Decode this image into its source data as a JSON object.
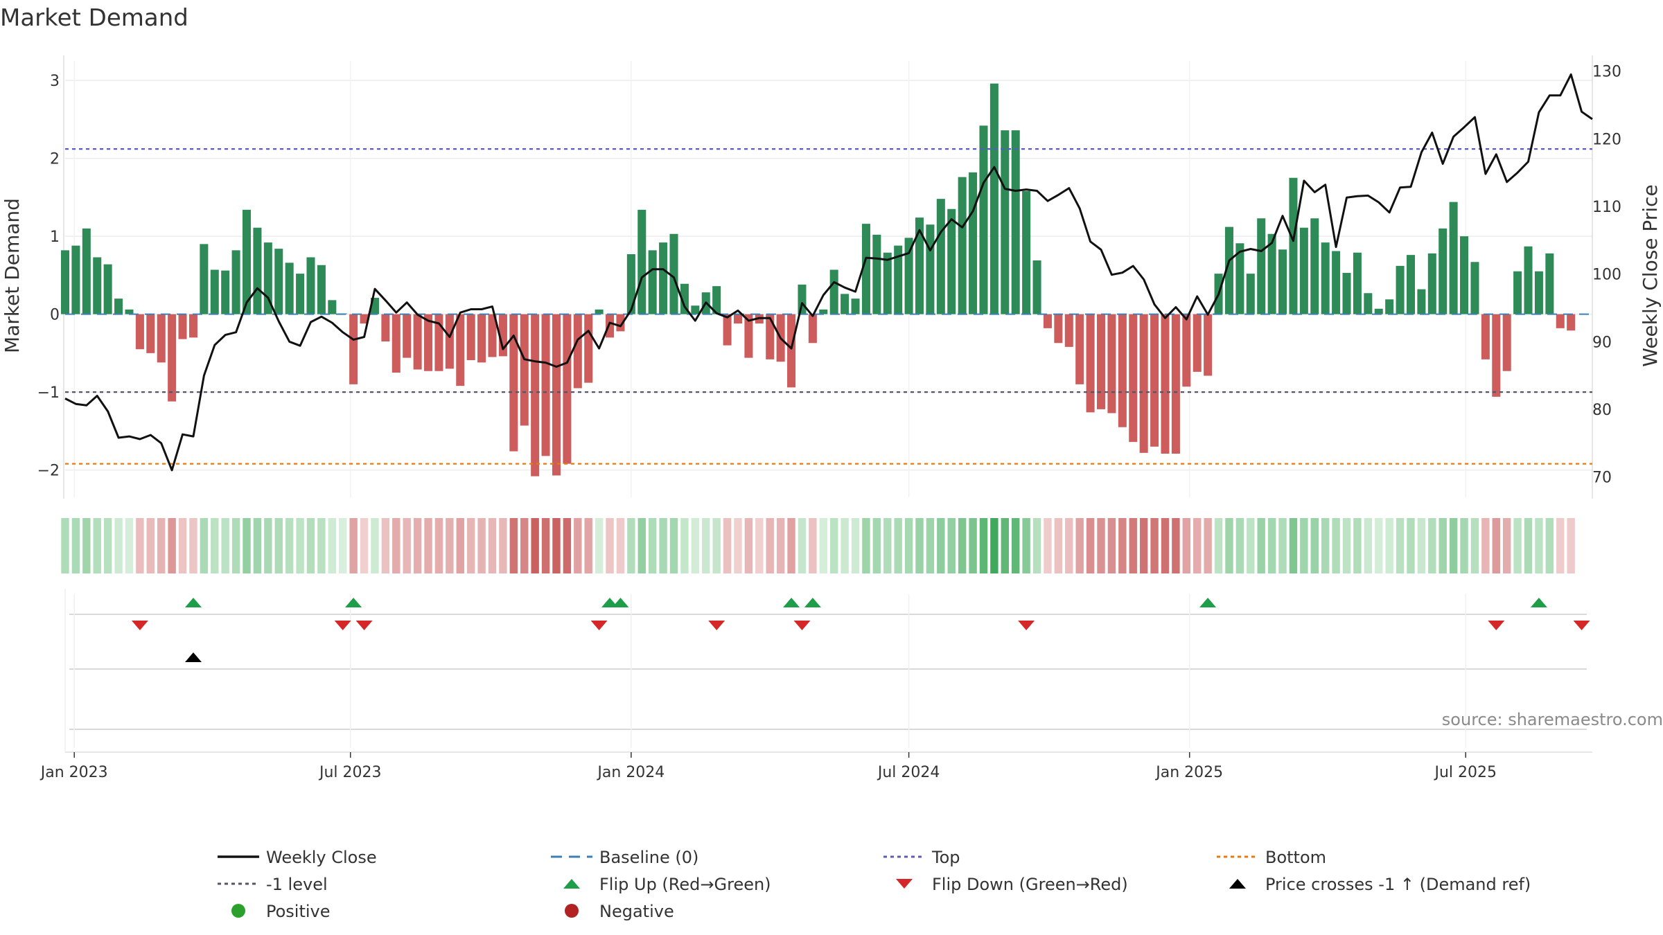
{
  "chart_data": {
    "type": "bar",
    "title": "Market Demand",
    "ylabel": "Market Demand",
    "y2label": "Weekly Close Price",
    "ylim": [
      -2.35,
      3.25
    ],
    "y2lim": [
      67,
      131.5
    ],
    "yticks": [
      3,
      2,
      1,
      0,
      -1,
      -2
    ],
    "ytick_labels": [
      "3",
      "2",
      "1",
      "0",
      "−1",
      "−2"
    ],
    "y2ticks": [
      130,
      120,
      110,
      100,
      90,
      80,
      70
    ],
    "y2tick_labels": [
      "130",
      "120",
      "110",
      "100",
      "90",
      "80",
      "70"
    ],
    "x_start": "2022-12-26",
    "x_end": "2025-09-22",
    "xticks": [
      {
        "date": "2023-01-01",
        "label": "Jan 2023"
      },
      {
        "date": "2023-07-01",
        "label": "Jul 2023"
      },
      {
        "date": "2024-01-01",
        "label": "Jan 2024"
      },
      {
        "date": "2024-07-01",
        "label": "Jul 2024"
      },
      {
        "date": "2025-01-01",
        "label": "Jan 2025"
      },
      {
        "date": "2025-07-01",
        "label": "Jul 2025"
      }
    ],
    "top_level": 2.12,
    "minus1_level": -1.0,
    "bottom_level": -1.92,
    "bars_start": "2022-12-26",
    "bar_step_days": 7,
    "demand": [
      0.82,
      0.88,
      1.1,
      0.73,
      0.64,
      0.2,
      0.06,
      -0.45,
      -0.5,
      -0.62,
      -1.12,
      -0.32,
      -0.3,
      0.9,
      0.57,
      0.56,
      0.82,
      1.34,
      1.11,
      0.92,
      0.84,
      0.66,
      0.52,
      0.73,
      0.63,
      0.18,
      0.01,
      -0.9,
      -0.12,
      0.21,
      -0.35,
      -0.75,
      -0.56,
      -0.71,
      -0.73,
      -0.73,
      -0.7,
      -0.92,
      -0.59,
      -0.62,
      -0.55,
      -0.54,
      -1.76,
      -1.43,
      -2.08,
      -1.82,
      -2.07,
      -1.92,
      -0.95,
      -0.88,
      0.06,
      -0.3,
      -0.22,
      0.77,
      1.34,
      0.82,
      0.92,
      1.03,
      0.39,
      0.11,
      0.28,
      0.36,
      -0.4,
      -0.12,
      -0.56,
      -0.12,
      -0.58,
      -0.61,
      -0.94,
      0.38,
      -0.37,
      0.06,
      0.57,
      0.26,
      0.2,
      1.16,
      1.02,
      0.79,
      0.88,
      0.98,
      1.24,
      1.15,
      1.48,
      1.35,
      1.76,
      1.82,
      2.42,
      2.96,
      2.36,
      2.36,
      1.58,
      0.69,
      -0.18,
      -0.37,
      -0.42,
      -0.9,
      -1.26,
      -1.22,
      -1.27,
      -1.45,
      -1.64,
      -1.78,
      -1.7,
      -1.79,
      -1.79,
      -0.93,
      -0.74,
      -0.79,
      0.52,
      1.12,
      0.91,
      0.52,
      1.23,
      1.03,
      0.83,
      1.75,
      1.11,
      1.23,
      0.92,
      0.81,
      0.53,
      0.79,
      0.27,
      0.07,
      0.19,
      0.62,
      0.76,
      0.32,
      0.78,
      1.1,
      1.44,
      1.0,
      0.67,
      -0.58,
      -1.06,
      -0.73,
      0.55,
      0.87,
      0.55,
      0.78,
      -0.18,
      -0.21
    ],
    "close": [
      81.6,
      80.8,
      80.6,
      82.0,
      79.7,
      75.8,
      76.0,
      75.6,
      76.2,
      75.0,
      71.0,
      76.3,
      76.0,
      85.0,
      89.5,
      91.0,
      91.4,
      95.8,
      97.9,
      96.5,
      93.0,
      90.0,
      89.4,
      92.9,
      93.7,
      92.8,
      91.4,
      90.3,
      90.7,
      97.8,
      96.1,
      94.3,
      95.8,
      94.0,
      93.1,
      92.7,
      90.7,
      94.3,
      94.8,
      94.8,
      95.2,
      88.9,
      90.9,
      87.4,
      87.1,
      86.9,
      86.3,
      86.9,
      90.3,
      91.6,
      89.0,
      92.8,
      92.3,
      94.7,
      99.5,
      100.7,
      100.7,
      99.5,
      95.2,
      93.1,
      95.8,
      94.2,
      93.6,
      94.6,
      93.1,
      93.5,
      93.5,
      90.5,
      89.0,
      95.7,
      93.8,
      96.9,
      98.8,
      98.0,
      97.4,
      102.4,
      102.3,
      102.1,
      102.6,
      103.1,
      106.5,
      103.5,
      106.2,
      108.1,
      106.9,
      109.3,
      113.5,
      115.8,
      112.6,
      112.3,
      112.5,
      112.3,
      110.8,
      111.7,
      112.7,
      109.7,
      104.8,
      103.6,
      99.9,
      100.2,
      101.2,
      99.2,
      95.5,
      93.5,
      95.1,
      93.3,
      96.7,
      94.0,
      97.0,
      102.0,
      103.3,
      103.7,
      103.4,
      104.6,
      108.6,
      104.9,
      113.8,
      112.1,
      113.2,
      104.0,
      111.3,
      111.5,
      111.6,
      110.6,
      109.1,
      112.8,
      112.9,
      118.0,
      120.9,
      116.3,
      120.3,
      121.7,
      123.2,
      114.8,
      117.7,
      113.6,
      115.0,
      116.6,
      123.9,
      126.4,
      126.4,
      129.5,
      124.0,
      122.9
    ],
    "heat_start": "2022-12-26",
    "heat_step_days": 7,
    "flip_up": [
      "2023-03-20",
      "2023-07-03",
      "2023-12-18",
      "2023-12-25",
      "2024-04-15",
      "2024-04-29",
      "2025-01-13",
      "2025-08-18"
    ],
    "flip_down": [
      "2023-02-13",
      "2023-06-26",
      "2023-07-10",
      "2023-12-11",
      "2024-02-26",
      "2024-04-22",
      "2024-09-16",
      "2025-07-21",
      "2025-09-15"
    ],
    "cross_up": [
      "2023-03-20"
    ],
    "positive_color": "#2e8b57",
    "negative_color": "#cd5c5c",
    "legend": [
      {
        "key": "weekly_close",
        "label": "Weekly Close",
        "symbol": "line",
        "color": "#111111"
      },
      {
        "key": "baseline",
        "label": "Baseline (0)",
        "symbol": "dash",
        "color": "#3a7fb8"
      },
      {
        "key": "top",
        "label": "Top",
        "symbol": "dot",
        "color": "#5b5bbf"
      },
      {
        "key": "bottom",
        "label": "Bottom",
        "symbol": "dot",
        "color": "#e07b1a"
      },
      {
        "key": "minus1",
        "label": "-1 level",
        "symbol": "dot",
        "color": "#555566"
      },
      {
        "key": "flip_up",
        "label": "Flip Up (Red→Green)",
        "symbol": "triangle-up",
        "color": "#1f9e4a"
      },
      {
        "key": "flip_down",
        "label": "Flip Down (Green→Red)",
        "symbol": "triangle-down",
        "color": "#d62728"
      },
      {
        "key": "cross",
        "label": "Price crosses -1 ↑ (Demand ref)",
        "symbol": "triangle-up",
        "color": "#000000"
      },
      {
        "key": "positive",
        "label": "Positive",
        "symbol": "circle",
        "color": "#2ca02c"
      },
      {
        "key": "negative",
        "label": "Negative",
        "symbol": "circle",
        "color": "#b22222"
      }
    ],
    "source": "source: sharemaestro.com"
  }
}
